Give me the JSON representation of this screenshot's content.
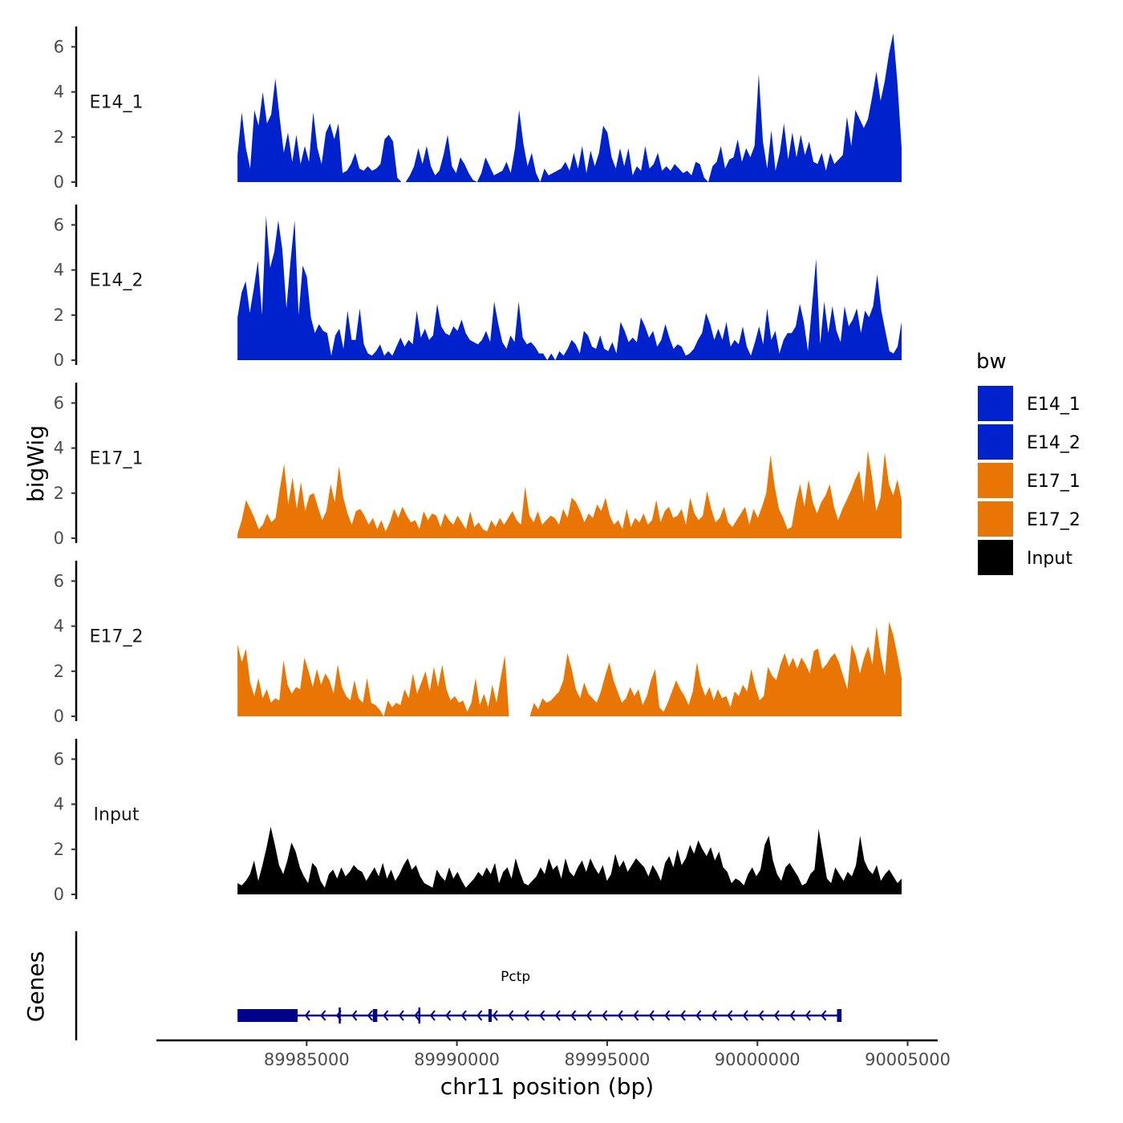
{
  "chart_data": {
    "type": "area",
    "layout": "stacked-tracks",
    "x_range": [
      89982700,
      90004800
    ],
    "xlim": [
      89980000,
      90006000
    ],
    "y_range": [
      0,
      6.8
    ],
    "y_ticks": [
      0,
      2,
      4,
      6
    ],
    "x_ticks": [
      89985000,
      89990000,
      89995000,
      90000000,
      90005000
    ],
    "x_tick_labels": [
      "89985000",
      "89990000",
      "89995000",
      "90000000",
      "90005000"
    ],
    "xlabel": "chr11 position (bp)",
    "ylabel": "bigWig",
    "genes_label": "Genes",
    "legend": {
      "title": "bw",
      "entries": [
        {
          "label": "E14_1",
          "color": "#0022cc"
        },
        {
          "label": "E14_2",
          "color": "#0022cc"
        },
        {
          "label": "E17_1",
          "color": "#e87504"
        },
        {
          "label": "E17_2",
          "color": "#e87504"
        },
        {
          "label": "Input",
          "color": "#000000"
        }
      ]
    },
    "tracks": [
      {
        "name": "E14_1",
        "color": "#0022cc",
        "values": [
          1.2,
          3.1,
          1.5,
          0.6,
          3.2,
          2.5,
          4.0,
          2.6,
          3.0,
          4.6,
          2.9,
          1.3,
          2.2,
          0.9,
          2.1,
          0.8,
          1.6,
          0.9,
          3.1,
          1.5,
          0.8,
          2.2,
          2.6,
          1.9,
          2.6,
          0.4,
          0.5,
          0.8,
          1.3,
          0.6,
          0.5,
          0.7,
          0.5,
          0.6,
          0.8,
          1.9,
          2.1,
          1.8,
          0.2,
          0.0,
          0.0,
          0.3,
          0.7,
          1.5,
          0.8,
          1.6,
          0.7,
          0.3,
          0.5,
          1.2,
          2.1,
          0.7,
          0.4,
          1.1,
          0.8,
          0.4,
          0.1,
          0.0,
          0.4,
          1.1,
          0.7,
          0.3,
          0.4,
          0.5,
          0.9,
          0.4,
          1.5,
          3.2,
          1.7,
          0.7,
          1.3,
          0.4,
          0.0,
          0.6,
          0.3,
          0.4,
          0.5,
          0.6,
          0.9,
          0.5,
          1.3,
          0.6,
          1.6,
          0.4,
          1.4,
          0.7,
          1.3,
          2.5,
          2.2,
          1.1,
          0.6,
          1.5,
          0.7,
          1.5,
          0.3,
          0.7,
          0.5,
          1.6,
          0.6,
          0.8,
          1.3,
          0.5,
          0.7,
          0.5,
          0.8,
          0.6,
          0.4,
          0.5,
          0.3,
          0.9,
          0.8,
          0.2,
          0.0,
          0.7,
          0.9,
          1.6,
          0.6,
          1.0,
          1.1,
          1.9,
          0.9,
          1.5,
          1.1,
          1.6,
          4.8,
          1.8,
          0.6,
          2.3,
          0.5,
          1.3,
          2.6,
          1.0,
          2.2,
          1.1,
          2.1,
          1.2,
          1.8,
          0.9,
          0.8,
          1.3,
          0.5,
          1.3,
          0.8,
          1.0,
          1.2,
          2.9,
          1.6,
          3.2,
          2.8,
          2.4,
          2.8,
          3.8,
          4.9,
          3.6,
          4.5,
          5.7,
          6.6,
          4.4,
          1.5
        ]
      },
      {
        "name": "E14_2",
        "color": "#0022cc",
        "values": [
          1.9,
          3.0,
          3.5,
          2.1,
          3.2,
          4.4,
          2.0,
          6.4,
          4.1,
          4.8,
          6.2,
          4.9,
          2.3,
          4.4,
          6.2,
          2.0,
          4.2,
          3.7,
          1.9,
          1.2,
          1.6,
          1.3,
          1.2,
          0.2,
          1.1,
          1.4,
          0.5,
          2.2,
          0.9,
          0.9,
          2.3,
          0.7,
          0.3,
          0.2,
          0.4,
          0.7,
          0.2,
          0.4,
          0.2,
          0.6,
          1.0,
          0.6,
          0.9,
          0.7,
          2.2,
          1.0,
          1.4,
          0.9,
          1.1,
          2.5,
          1.5,
          1.2,
          1.1,
          1.5,
          1.3,
          1.8,
          1.2,
          0.9,
          0.8,
          0.7,
          0.9,
          1.3,
          0.8,
          2.6,
          1.6,
          0.8,
          0.5,
          1.1,
          0.8,
          2.6,
          1.0,
          0.7,
          0.8,
          0.6,
          0.3,
          0.3,
          0.0,
          0.3,
          0.0,
          0.4,
          0.2,
          0.5,
          0.9,
          0.7,
          0.3,
          1.3,
          1.1,
          0.6,
          0.5,
          1.1,
          0.5,
          0.4,
          0.8,
          0.3,
          1.7,
          1.3,
          0.8,
          1.0,
          0.8,
          1.9,
          1.5,
          1.0,
          1.3,
          0.6,
          0.9,
          1.6,
          1.0,
          0.5,
          0.7,
          0.6,
          0.2,
          0.3,
          0.5,
          0.9,
          1.2,
          2.1,
          1.6,
          0.9,
          1.4,
          0.9,
          1.7,
          0.6,
          0.9,
          0.7,
          1.5,
          0.6,
          0.2,
          0.8,
          1.5,
          0.7,
          2.3,
          0.9,
          1.3,
          0.3,
          0.9,
          1.2,
          1.2,
          1.5,
          2.5,
          1.7,
          0.4,
          2.4,
          4.5,
          0.7,
          2.6,
          1.2,
          2.4,
          1.3,
          0.8,
          2.4,
          1.5,
          1.8,
          2.3,
          1.2,
          2.2,
          1.9,
          2.4,
          3.8,
          2.2,
          1.3,
          0.4,
          0.3,
          0.6,
          1.7
        ]
      },
      {
        "name": "E17_1",
        "color": "#e87504",
        "values": [
          0.2,
          0.8,
          1.7,
          1.3,
          0.9,
          0.4,
          0.6,
          1.1,
          0.7,
          0.9,
          2.2,
          3.3,
          1.5,
          2.7,
          1.3,
          2.5,
          1.2,
          1.9,
          2.0,
          1.4,
          0.8,
          1.2,
          2.4,
          1.6,
          3.2,
          1.8,
          1.1,
          0.6,
          1.2,
          1.3,
          1.0,
          0.6,
          0.9,
          0.4,
          0.8,
          0.3,
          0.7,
          1.3,
          0.9,
          1.4,
          1.0,
          0.7,
          0.8,
          0.4,
          1.2,
          0.8,
          1.1,
          1.0,
          0.5,
          1.1,
          0.8,
          0.6,
          1.0,
          0.7,
          0.4,
          1.2,
          0.5,
          0.7,
          0.4,
          0.3,
          0.8,
          0.5,
          0.9,
          0.6,
          0.9,
          1.2,
          0.8,
          0.6,
          2.3,
          1.0,
          0.7,
          1.2,
          0.6,
          0.8,
          1.0,
          0.9,
          0.6,
          1.3,
          0.9,
          1.8,
          1.6,
          1.2,
          0.7,
          1.1,
          0.9,
          1.5,
          1.2,
          1.8,
          1.0,
          0.6,
          0.8,
          0.4,
          1.3,
          0.5,
          0.9,
          0.7,
          1.1,
          0.6,
          0.8,
          1.7,
          0.7,
          1.2,
          1.4,
          0.9,
          1.0,
          1.3,
          0.6,
          1.8,
          1.1,
          0.8,
          1.0,
          2.1,
          1.3,
          0.7,
          0.9,
          1.4,
          0.7,
          0.5,
          0.8,
          1.1,
          1.4,
          0.6,
          1.3,
          0.9,
          1.4,
          2.0,
          3.7,
          2.3,
          1.3,
          0.9,
          0.4,
          0.5,
          1.6,
          2.4,
          1.4,
          2.6,
          1.6,
          1.1,
          1.6,
          1.9,
          2.4,
          1.4,
          0.8,
          1.3,
          1.7,
          2.1,
          2.6,
          3.0,
          1.6,
          3.9,
          2.7,
          1.2,
          1.8,
          3.8,
          2.4,
          1.9,
          2.6,
          1.7
        ]
      },
      {
        "name": "E17_2",
        "color": "#e87504",
        "values": [
          3.2,
          2.4,
          3.0,
          1.5,
          0.9,
          1.7,
          0.8,
          1.2,
          0.6,
          0.8,
          0.7,
          2.5,
          1.4,
          1.0,
          1.3,
          1.2,
          2.6,
          2.0,
          1.3,
          2.1,
          1.4,
          1.9,
          1.6,
          1.0,
          2.3,
          1.3,
          0.9,
          0.7,
          1.6,
          0.8,
          0.6,
          1.7,
          0.6,
          0.5,
          0.3,
          0.0,
          0.7,
          0.4,
          0.6,
          0.5,
          1.2,
          0.8,
          1.9,
          1.0,
          1.5,
          2.0,
          1.1,
          2.2,
          1.3,
          2.3,
          1.2,
          0.7,
          0.9,
          0.6,
          0.7,
          0.2,
          0.6,
          1.7,
          0.5,
          1.0,
          0.4,
          1.4,
          0.6,
          1.7,
          2.7,
          0.0,
          0.0,
          0.0,
          0.0,
          0.0,
          0.0,
          0.6,
          0.3,
          0.8,
          0.6,
          0.7,
          0.9,
          1.1,
          1.6,
          2.8,
          2.1,
          1.2,
          0.8,
          1.5,
          1.0,
          0.8,
          0.6,
          1.1,
          1.8,
          2.4,
          1.6,
          1.1,
          0.6,
          0.8,
          1.3,
          0.9,
          1.2,
          0.5,
          0.9,
          1.6,
          2.1,
          0.4,
          0.2,
          0.6,
          1.1,
          1.6,
          1.2,
          0.9,
          0.5,
          1.1,
          2.4,
          1.4,
          0.9,
          1.3,
          0.7,
          1.2,
          0.8,
          0.9,
          0.4,
          1.1,
          0.9,
          1.4,
          1.1,
          2.1,
          1.3,
          0.7,
          0.9,
          2.2,
          1.8,
          1.6,
          2.3,
          2.8,
          2.2,
          2.6,
          2.1,
          2.6,
          2.3,
          1.9,
          2.9,
          3.0,
          2.1,
          2.3,
          2.6,
          2.8,
          2.4,
          1.8,
          1.2,
          3.2,
          2.7,
          1.9,
          2.6,
          3.1,
          2.3,
          4.0,
          2.7,
          1.8,
          4.2,
          3.6,
          2.7,
          1.7
        ]
      },
      {
        "name": "Input",
        "color": "#000000",
        "values": [
          0.5,
          0.4,
          0.6,
          0.9,
          1.5,
          0.6,
          1.3,
          2.1,
          3.0,
          2.2,
          1.3,
          0.9,
          1.5,
          2.3,
          1.9,
          1.2,
          0.8,
          0.5,
          1.4,
          1.2,
          0.6,
          0.3,
          0.9,
          1.1,
          0.7,
          1.2,
          0.8,
          1.0,
          1.3,
          1.1,
          1.0,
          0.6,
          0.9,
          1.2,
          0.8,
          1.4,
          0.7,
          1.1,
          0.6,
          0.9,
          1.3,
          1.6,
          1.1,
          1.3,
          0.8,
          0.5,
          0.4,
          0.3,
          1.1,
          0.8,
          0.6,
          1.2,
          0.7,
          1.0,
          0.6,
          0.3,
          0.5,
          0.7,
          1.0,
          0.8,
          1.2,
          0.9,
          1.4,
          0.5,
          1.0,
          1.2,
          0.7,
          1.6,
          1.0,
          0.5,
          0.4,
          0.6,
          0.8,
          1.2,
          0.9,
          1.6,
          1.1,
          1.3,
          0.7,
          1.6,
          1.0,
          0.8,
          1.2,
          1.5,
          1.0,
          1.6,
          1.2,
          0.9,
          1.3,
          0.6,
          0.9,
          1.8,
          1.2,
          1.5,
          1.0,
          1.3,
          1.6,
          1.4,
          1.2,
          0.8,
          1.3,
          1.0,
          0.6,
          1.4,
          1.7,
          1.2,
          2.0,
          1.3,
          1.6,
          2.2,
          1.8,
          2.4,
          2.0,
          1.7,
          2.1,
          1.5,
          1.9,
          1.2,
          1.0,
          0.5,
          0.7,
          0.6,
          0.4,
          0.9,
          1.2,
          0.8,
          1.1,
          2.2,
          2.6,
          1.5,
          0.9,
          0.6,
          1.2,
          1.4,
          1.1,
          0.8,
          0.4,
          0.5,
          0.9,
          1.1,
          2.9,
          1.8,
          0.7,
          0.5,
          1.2,
          0.9,
          0.6,
          1.0,
          0.8,
          1.3,
          2.6,
          1.5,
          1.1,
          0.9,
          1.3,
          0.6,
          0.9,
          1.1,
          0.8,
          0.5,
          0.7
        ]
      }
    ],
    "gene": {
      "name": "Pctp",
      "start": 89982700,
      "end": 90002800,
      "strand": "-",
      "color": "#00008b",
      "exons": [
        [
          89982700,
          89984700
        ],
        [
          89987200,
          89987350
        ],
        [
          89991050,
          89991150
        ],
        [
          90002650,
          90002800
        ]
      ],
      "ticks": [
        89986100,
        89988750
      ]
    }
  }
}
